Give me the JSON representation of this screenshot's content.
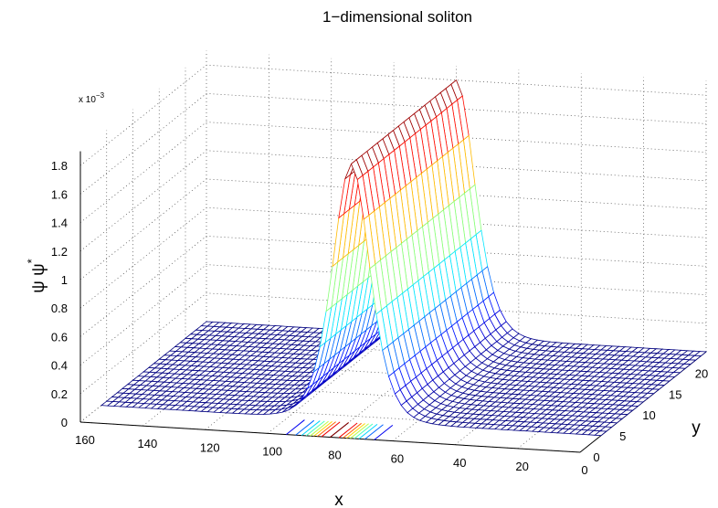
{
  "chart_data": {
    "type": "surface",
    "title": "1−dimensional soliton",
    "xlabel": "x",
    "ylabel": "y",
    "zlabel": "ψ ψ",
    "zlabel_superscript": "*",
    "z_exponent_label": "x 10",
    "z_exponent_power": "−3",
    "colormap": "jet",
    "grid": true,
    "xlim": [
      0,
      160
    ],
    "ylim": [
      0,
      24
    ],
    "zlim": [
      0,
      1.9
    ],
    "x_ticks": [
      "0",
      "20",
      "40",
      "60",
      "80",
      "100",
      "120",
      "140",
      "160"
    ],
    "y_ticks": [
      "0",
      "5",
      "10",
      "15",
      "20"
    ],
    "z_ticks": [
      "0",
      "0.2",
      "0.4",
      "0.6",
      "0.8",
      "1",
      "1.2",
      "1.4",
      "1.6",
      "1.8"
    ],
    "z_scale": 0.001,
    "soliton": {
      "peak": 1.8,
      "center_x": 80,
      "width": 8
    },
    "mesh": {
      "x_step": 2,
      "y_step": 1
    },
    "contour_levels": [
      0.2,
      0.4,
      0.6,
      0.8,
      1.0,
      1.2,
      1.4,
      1.6,
      1.8
    ]
  }
}
